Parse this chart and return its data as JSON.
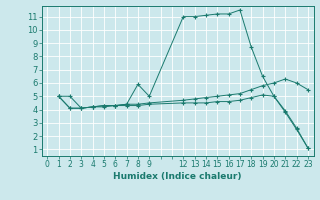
{
  "xlabel": "Humidex (Indice chaleur)",
  "background_color": "#cce8ec",
  "grid_color": "#ffffff",
  "line_color": "#1a7a6e",
  "xlim": [
    -0.5,
    23.5
  ],
  "ylim": [
    0.5,
    11.8
  ],
  "yticks": [
    1,
    2,
    3,
    4,
    5,
    6,
    7,
    8,
    9,
    10,
    11
  ],
  "xticks": [
    0,
    1,
    2,
    3,
    4,
    5,
    6,
    7,
    8,
    9,
    10,
    11,
    12,
    13,
    14,
    15,
    16,
    17,
    18,
    19,
    20,
    21,
    22,
    23
  ],
  "xtick_labels": [
    "0",
    "1",
    "2",
    "3",
    "4",
    "5",
    "6",
    "7",
    "8",
    "9",
    "",
    "",
    "12",
    "13",
    "14",
    "15",
    "16",
    "17",
    "18",
    "19",
    "20",
    "21",
    "22",
    "23"
  ],
  "series": [
    {
      "x": [
        1,
        2,
        3,
        4,
        5,
        6,
        7,
        8,
        9,
        12,
        13,
        14,
        15,
        16,
        17,
        18,
        19,
        20,
        21,
        22,
        23
      ],
      "y": [
        5.0,
        5.0,
        4.1,
        4.2,
        4.3,
        4.3,
        4.4,
        5.9,
        5.0,
        11.0,
        11.0,
        11.1,
        11.2,
        11.2,
        11.5,
        8.7,
        6.5,
        5.0,
        3.8,
        2.5,
        1.1
      ]
    },
    {
      "x": [
        1,
        2,
        3,
        4,
        5,
        6,
        7,
        8,
        9,
        12,
        13,
        14,
        15,
        16,
        17,
        18,
        19,
        20,
        21,
        22,
        23
      ],
      "y": [
        5.0,
        4.1,
        4.1,
        4.2,
        4.3,
        4.3,
        4.4,
        4.4,
        4.5,
        4.7,
        4.8,
        4.9,
        5.0,
        5.1,
        5.2,
        5.5,
        5.8,
        6.0,
        6.3,
        6.0,
        5.5
      ]
    },
    {
      "x": [
        1,
        2,
        3,
        4,
        5,
        6,
        7,
        8,
        9,
        12,
        13,
        14,
        15,
        16,
        17,
        18,
        19,
        20,
        21,
        22,
        23
      ],
      "y": [
        5.0,
        4.1,
        4.1,
        4.2,
        4.2,
        4.3,
        4.3,
        4.3,
        4.4,
        4.5,
        4.5,
        4.5,
        4.6,
        4.6,
        4.7,
        4.9,
        5.1,
        5.0,
        3.9,
        2.6,
        1.1
      ]
    }
  ]
}
